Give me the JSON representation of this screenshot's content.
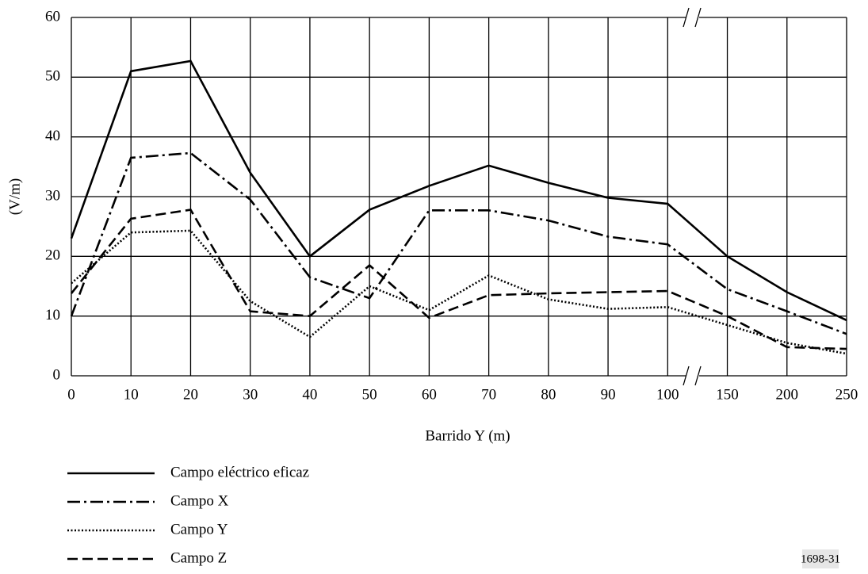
{
  "chart_data": {
    "type": "line",
    "x_label": "Barrido Y (m)",
    "y_label": "(V/m)",
    "figure_id": "1698-31",
    "categories": [
      "0",
      "10",
      "20",
      "30",
      "40",
      "50",
      "60",
      "70",
      "80",
      "90",
      "100",
      "150",
      "200",
      "250"
    ],
    "ylim": [
      0,
      60
    ],
    "yticks": [
      0,
      10,
      20,
      30,
      40,
      50,
      60
    ],
    "grid": true,
    "series": [
      {
        "name": "Campo eléctrico eficaz",
        "color": "#000000",
        "linestyle": "solid",
        "values": [
          23,
          51,
          52.7,
          34,
          20,
          27.8,
          31.8,
          35.2,
          32.3,
          29.8,
          28.8,
          20,
          14,
          9.3
        ]
      },
      {
        "name": "Campo X",
        "color": "#000000",
        "linestyle": "dashdot",
        "values": [
          10,
          36.5,
          37.3,
          29.5,
          16.5,
          13,
          27.7,
          27.7,
          26,
          23.3,
          22,
          14.5,
          10.8,
          7
        ]
      },
      {
        "name": "Campo Y",
        "color": "#000000",
        "linestyle": "dotted",
        "values": [
          15.5,
          24,
          24.3,
          12.5,
          6.5,
          15,
          11,
          16.8,
          12.8,
          11.2,
          11.5,
          8.5,
          5.5,
          3.7
        ]
      },
      {
        "name": "Campo Z",
        "color": "#000000",
        "linestyle": "dashed",
        "values": [
          13.8,
          26.3,
          27.8,
          10.8,
          10,
          18.5,
          9.7,
          13.5,
          13.8,
          14,
          14.2,
          10,
          4.8,
          4.5
        ]
      }
    ]
  }
}
